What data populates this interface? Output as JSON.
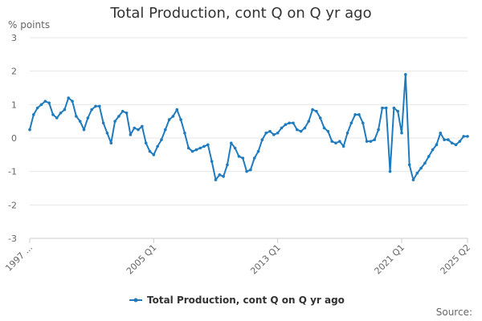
{
  "page": {
    "title": "Total Production, cont Q on Q yr ago",
    "y_unit": "% points",
    "source_label": "Source:"
  },
  "colors": {
    "series": "#1f7bbd",
    "grid": "#e6e6e6",
    "axis": "#cccccc",
    "text": "#333333",
    "muted": "#666666"
  },
  "chart_data": {
    "type": "line",
    "title": "Total Production, cont Q on Q yr ago",
    "ylabel": "% points",
    "xlabel": "",
    "ylim": [
      -3,
      3
    ],
    "yticks": [
      -3,
      -2,
      -1,
      0,
      1,
      2,
      3
    ],
    "grid": true,
    "legend": "bottom-center",
    "x_start": "1997 Q1",
    "x_end": "2025 Q2",
    "x_tick_labels": [
      {
        "label": "1997 ...",
        "period": "1997 Q1"
      },
      {
        "label": "2005 Q1",
        "period": "2005 Q1"
      },
      {
        "label": "2013 Q1",
        "period": "2013 Q1"
      },
      {
        "label": "2021 Q1",
        "period": "2021 Q1"
      },
      {
        "label": "2025 Q2",
        "period": "2025 Q2"
      }
    ],
    "series": [
      {
        "name": "Total Production, cont Q on Q yr ago",
        "start": "1997 Q1",
        "values": [
          0.25,
          0.7,
          0.9,
          1.0,
          1.1,
          1.05,
          0.7,
          0.6,
          0.75,
          0.85,
          1.2,
          1.1,
          0.65,
          0.5,
          0.25,
          0.6,
          0.85,
          0.95,
          0.95,
          0.45,
          0.15,
          -0.15,
          0.5,
          0.65,
          0.8,
          0.75,
          0.1,
          0.3,
          0.25,
          0.35,
          -0.15,
          -0.4,
          -0.5,
          -0.25,
          -0.05,
          0.25,
          0.55,
          0.65,
          0.85,
          0.55,
          0.15,
          -0.3,
          -0.4,
          -0.35,
          -0.3,
          -0.25,
          -0.2,
          -0.7,
          -1.25,
          -1.1,
          -1.15,
          -0.8,
          -0.15,
          -0.3,
          -0.55,
          -0.6,
          -1.0,
          -0.95,
          -0.6,
          -0.4,
          -0.05,
          0.15,
          0.2,
          0.1,
          0.15,
          0.3,
          0.4,
          0.45,
          0.45,
          0.25,
          0.2,
          0.3,
          0.5,
          0.85,
          0.8,
          0.6,
          0.3,
          0.2,
          -0.1,
          -0.15,
          -0.1,
          -0.25,
          0.15,
          0.45,
          0.7,
          0.7,
          0.45,
          -0.1,
          -0.1,
          -0.05,
          0.25,
          0.9,
          0.9,
          -1.0,
          0.9,
          0.8,
          0.15,
          1.9,
          -0.8,
          -1.25,
          -1.05,
          -0.9,
          -0.75,
          -0.55,
          -0.35,
          -0.2,
          0.15,
          -0.05,
          -0.05,
          -0.15,
          -0.2,
          -0.1,
          0.05,
          0.05
        ]
      }
    ]
  }
}
